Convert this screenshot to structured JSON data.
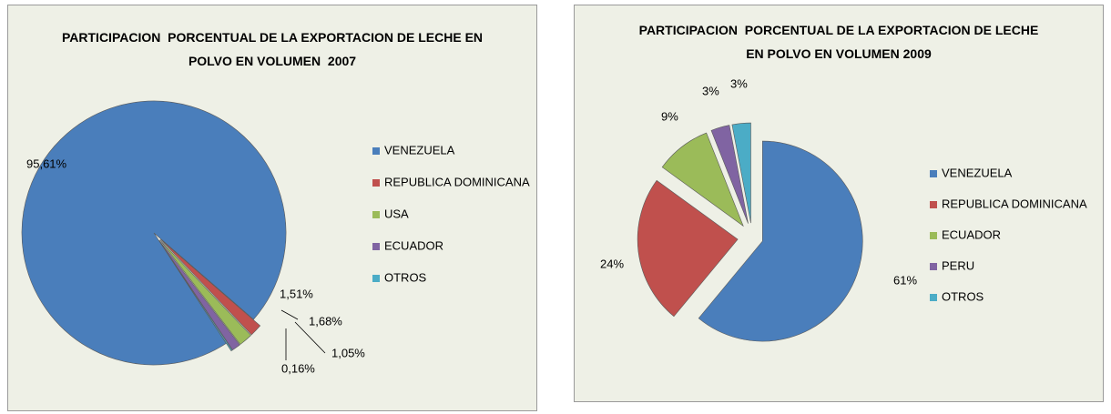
{
  "chart_data": [
    {
      "type": "pie",
      "title": "PARTICIPACION  PORCENTUAL DE LA EXPORTACION DE LECHE EN POLVO EN VOLUMEN  2007",
      "categories": [
        "VENEZUELA",
        "REPUBLICA DOMINICANA",
        "USA",
        "ECUADOR",
        "OTROS"
      ],
      "values": [
        95.61,
        1.51,
        1.68,
        1.05,
        0.16
      ],
      "value_labels": [
        "95,61%",
        "1,51%",
        "1,68%",
        "1,05%",
        "0,16%"
      ],
      "colors": [
        "#4a7ebb",
        "#c0504d",
        "#9bbb59",
        "#8064a2",
        "#4bacc6"
      ],
      "legend": "right"
    },
    {
      "type": "pie",
      "title": "PARTICIPACION  PORCENTUAL DE LA EXPORTACION DE LECHE EN POLVO EN VOLUMEN 2009",
      "categories": [
        "VENEZUELA",
        "REPUBLICA DOMINICANA",
        "ECUADOR",
        "PERU",
        "OTROS"
      ],
      "values": [
        61,
        24,
        9,
        3,
        3
      ],
      "value_labels": [
        "61%",
        "24%",
        "9%",
        "3%",
        "3%"
      ],
      "colors": [
        "#4a7ebb",
        "#c0504d",
        "#9bbb59",
        "#8064a2",
        "#4bacc6"
      ],
      "legend": "right"
    }
  ]
}
